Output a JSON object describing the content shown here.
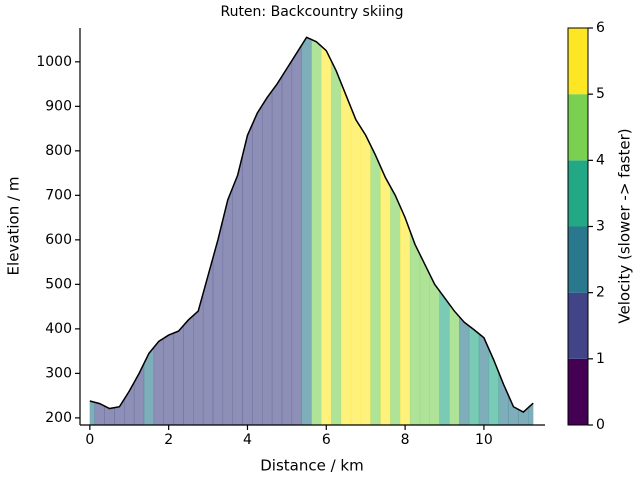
{
  "chart_data": {
    "type": "area",
    "title": "Ruten: Backcountry skiing",
    "xlabel": "Distance / km",
    "ylabel": "Elevation / m",
    "x": [
      0,
      0.25,
      0.5,
      0.75,
      1.0,
      1.25,
      1.5,
      1.75,
      2.0,
      2.25,
      2.5,
      2.75,
      3.0,
      3.25,
      3.5,
      3.75,
      4.0,
      4.25,
      4.5,
      4.75,
      5.0,
      5.25,
      5.5,
      5.75,
      6.0,
      6.25,
      6.5,
      6.75,
      7.0,
      7.25,
      7.5,
      7.75,
      8.0,
      8.25,
      8.5,
      8.75,
      9.0,
      9.25,
      9.5,
      9.75,
      10.0,
      10.25,
      10.5,
      10.75,
      11.0,
      11.25
    ],
    "series": [
      {
        "name": "Elevation",
        "color": "#000000",
        "values": [
          238,
          232,
          221,
          225,
          260,
          300,
          345,
          372,
          386,
          395,
          420,
          440,
          520,
          600,
          690,
          745,
          835,
          885,
          920,
          950,
          985,
          1020,
          1055,
          1045,
          1025,
          980,
          925,
          870,
          835,
          790,
          740,
          700,
          650,
          590,
          545,
          500,
          470,
          440,
          415,
          398,
          380,
          330,
          275,
          225,
          213,
          233
        ]
      },
      {
        "name": "Velocity",
        "values": [
          2.5,
          1.5,
          1.5,
          1.5,
          1.5,
          1.5,
          2.5,
          1.5,
          1.5,
          1.5,
          1.5,
          1.5,
          1.5,
          1.5,
          1.5,
          1.5,
          1.5,
          1.5,
          1.5,
          1.5,
          1.5,
          1.5,
          2.5,
          4.5,
          5.5,
          4.5,
          5.5,
          5.5,
          5.5,
          4.5,
          5.5,
          4.5,
          5.5,
          4.5,
          4.5,
          4.5,
          3.5,
          4.5,
          2.5,
          3.5,
          2.5,
          3.5,
          2.5,
          2.5,
          2.5,
          2.5
        ]
      }
    ],
    "xlim": [
      -0.25,
      11.55
    ],
    "ylim": [
      184,
      1076
    ],
    "xticks": [
      0,
      2,
      4,
      6,
      8,
      10
    ],
    "yticks": [
      200,
      300,
      400,
      500,
      600,
      700,
      800,
      900,
      1000
    ],
    "fill_opacity": 0.6,
    "colorbar": {
      "label": "Velocity (slower -> faster)",
      "lim": [
        0,
        6
      ],
      "ticks": [
        0,
        1,
        2,
        3,
        4,
        5,
        6
      ],
      "colors": [
        "#440154",
        "#414487",
        "#2a788e",
        "#22a884",
        "#7ad151",
        "#fde725"
      ]
    }
  }
}
